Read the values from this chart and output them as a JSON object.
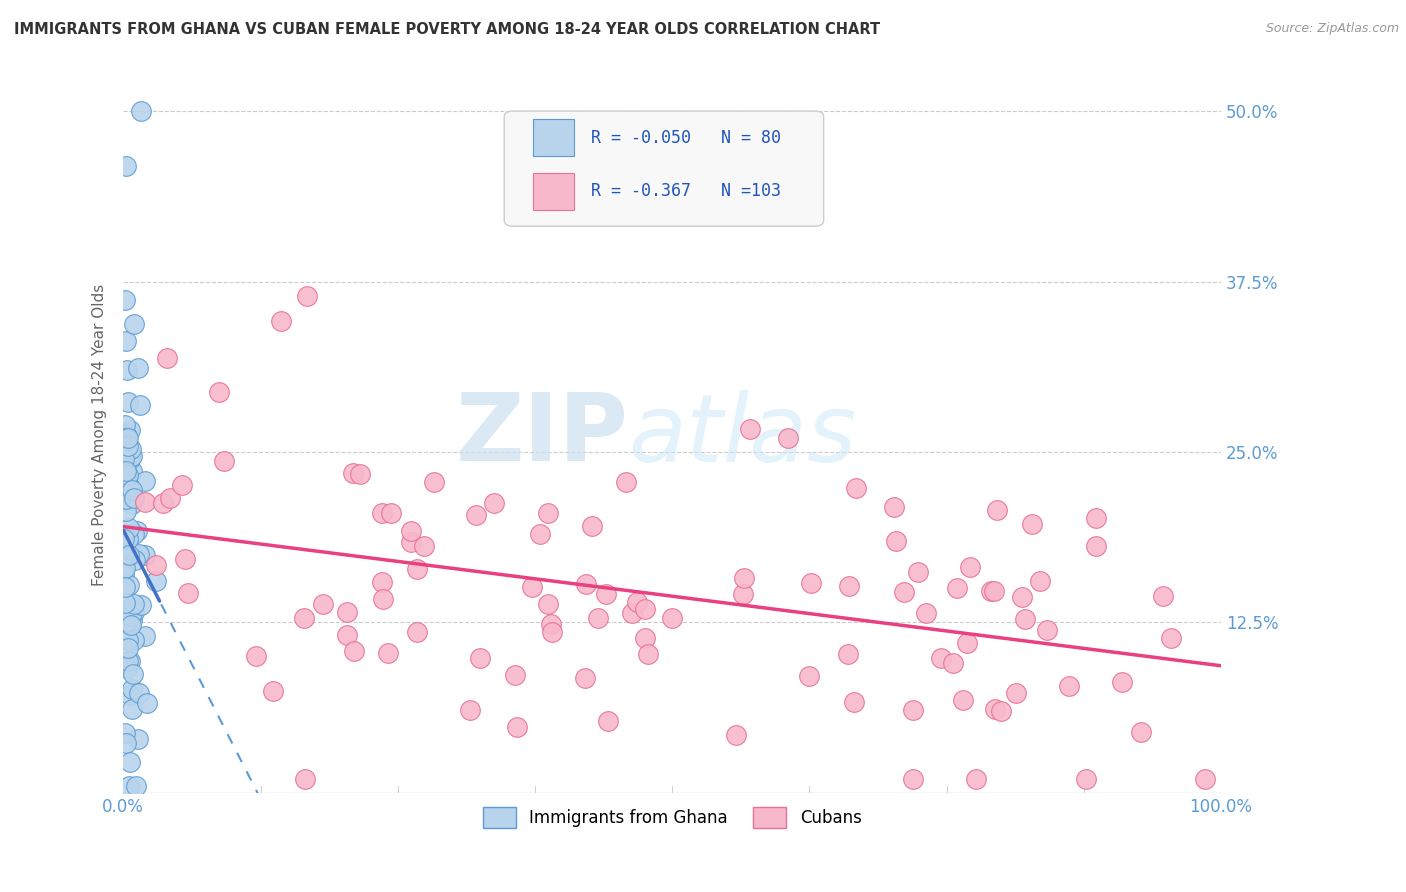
{
  "title": "IMMIGRANTS FROM GHANA VS CUBAN FEMALE POVERTY AMONG 18-24 YEAR OLDS CORRELATION CHART",
  "source": "Source: ZipAtlas.com",
  "ylabel": "Female Poverty Among 18-24 Year Olds",
  "xlim": [
    0,
    1.0
  ],
  "ylim": [
    0,
    0.525
  ],
  "yticks": [
    0.0,
    0.125,
    0.25,
    0.375,
    0.5
  ],
  "yticklabels": [
    "",
    "12.5%",
    "25.0%",
    "37.5%",
    "50.0%"
  ],
  "xtick_left_label": "0.0%",
  "xtick_right_label": "100.0%",
  "watermark_zip": "ZIP",
  "watermark_atlas": "atlas",
  "legend_R1": " -0.050",
  "legend_N1": " 80",
  "legend_R2": " -0.367",
  "legend_N2": "103",
  "ghana_fill_color": "#b8d4ec",
  "ghana_edge_color": "#5b9bd5",
  "cuban_fill_color": "#f8b8cc",
  "cuban_edge_color": "#e87090",
  "ghana_line_color": "#4472c4",
  "cuban_line_color": "#e84080",
  "legend_text_color": "#2255bb",
  "tick_color": "#5b9bd5",
  "title_color": "#333333",
  "source_color": "#999999",
  "grid_color": "#cccccc",
  "ghana_R": -0.05,
  "cuban_R": -0.367,
  "n_ghana": 80,
  "n_cuban": 103,
  "seed": 12345
}
